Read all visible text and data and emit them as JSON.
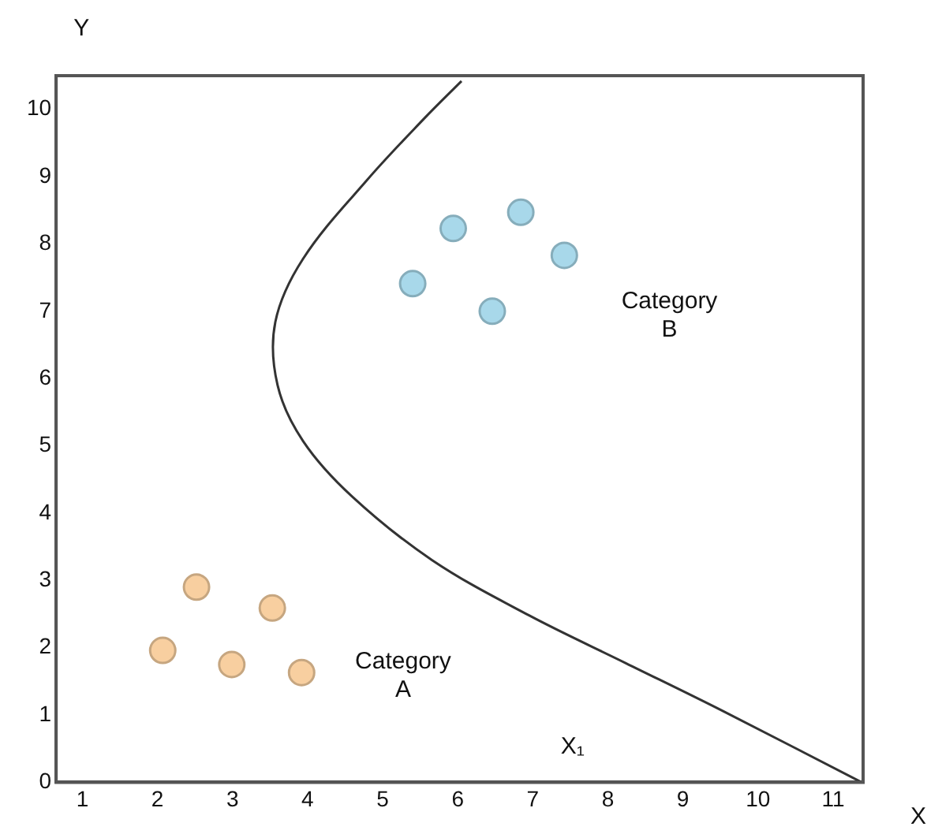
{
  "chart_data": {
    "type": "scatter",
    "xlabel": "X",
    "ylabel": "Y",
    "xlim": [
      0.65,
      11.4
    ],
    "ylim": [
      0,
      10.5
    ],
    "xticks": [
      1,
      2,
      3,
      4,
      5,
      6,
      7,
      8,
      9,
      10,
      11
    ],
    "yticks": [
      0,
      1,
      2,
      3,
      4,
      5,
      6,
      7,
      8,
      9,
      10
    ],
    "grid": false,
    "legend": false,
    "marker": "circle",
    "series": [
      {
        "color": "#f8cfa0",
        "x": [
          2.07,
          2.52,
          3.53,
          2.99,
          3.92
        ],
        "values": [
          1.96,
          2.9,
          2.59,
          1.75,
          1.63
        ]
      },
      {
        "color": "#a8d8ea",
        "x": [
          5.4,
          5.94,
          6.84,
          7.42,
          6.46
        ],
        "values": [
          7.41,
          8.23,
          8.47,
          7.83,
          7.0
        ]
      },
      {
        "type": "line",
        "color": "#333333",
        "marker": "none",
        "x": [
          6.05,
          5.55,
          4.8,
          3.94,
          3.57,
          3.6,
          3.94,
          4.59,
          5.66,
          6.95,
          8.24,
          9.53,
          11.38
        ],
        "values": [
          10.42,
          9.86,
          8.96,
          7.78,
          6.84,
          5.9,
          5.07,
          4.25,
          3.3,
          2.48,
          1.77,
          1.06,
          0
        ]
      }
    ],
    "annotations": [
      "Category\nA",
      "Category\nB",
      "X₁"
    ]
  }
}
